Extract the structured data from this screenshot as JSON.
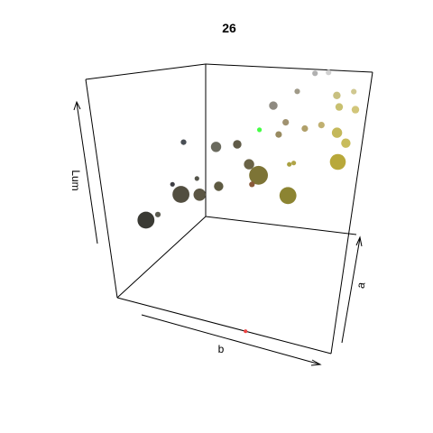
{
  "chart_data": {
    "type": "scatter3d",
    "title": "26",
    "xlabel": "b",
    "ylabel": "a",
    "zlabel": "Lum",
    "grid": false,
    "legend": "none",
    "points": [
      {
        "x": 0.02,
        "y": 0.34,
        "z": 0.26,
        "size": 1.8,
        "color": "#3a3a34"
      },
      {
        "x": 0.14,
        "y": 0.22,
        "z": 0.36,
        "size": 0.6,
        "color": "#5b5b50"
      },
      {
        "x": 0.1,
        "y": 0.56,
        "z": 0.34,
        "size": 1.8,
        "color": "#524e40"
      },
      {
        "x": 0.2,
        "y": 0.56,
        "z": 0.36,
        "size": 1.3,
        "color": "#5b5644"
      },
      {
        "x": 0.24,
        "y": 0.7,
        "z": 0.36,
        "size": 1.0,
        "color": "#5e5a42"
      },
      {
        "x": 0.3,
        "y": 0.8,
        "z": 0.58,
        "size": 0.9,
        "color": "#605b48"
      },
      {
        "x": 0.36,
        "y": 0.82,
        "z": 0.46,
        "size": 1.1,
        "color": "#6a6346"
      },
      {
        "x": 0.4,
        "y": 0.86,
        "z": 0.38,
        "size": 2.0,
        "color": "#7d7436"
      },
      {
        "x": 0.37,
        "y": 0.84,
        "z": 0.33,
        "size": 0.6,
        "color": "#8a5a3a"
      },
      {
        "x": 0.58,
        "y": 0.86,
        "z": 0.28,
        "size": 1.8,
        "color": "#8c8432"
      },
      {
        "x": 0.55,
        "y": 0.95,
        "z": 0.42,
        "size": 0.5,
        "color": "#a9a040"
      },
      {
        "x": 0.57,
        "y": 0.97,
        "z": 0.42,
        "size": 0.5,
        "color": "#b0a448"
      },
      {
        "x": 0.84,
        "y": 0.99,
        "z": 0.44,
        "size": 1.7,
        "color": "#b8a83a"
      },
      {
        "x": 0.82,
        "y": 0.99,
        "z": 0.62,
        "size": 1.1,
        "color": "#c4b85a"
      },
      {
        "x": 0.88,
        "y": 0.99,
        "z": 0.56,
        "size": 1.0,
        "color": "#c8bc5c"
      },
      {
        "x": 0.46,
        "y": 0.99,
        "z": 0.58,
        "size": 0.7,
        "color": "#988a60"
      },
      {
        "x": 0.5,
        "y": 0.99,
        "z": 0.66,
        "size": 0.7,
        "color": "#a09270"
      },
      {
        "x": 0.62,
        "y": 0.99,
        "z": 0.63,
        "size": 0.7,
        "color": "#b0a06a"
      },
      {
        "x": 0.42,
        "y": 0.99,
        "z": 0.76,
        "size": 0.9,
        "color": "#8e8a80"
      },
      {
        "x": 0.56,
        "y": 0.99,
        "z": 0.86,
        "size": 0.6,
        "color": "#a09a88"
      },
      {
        "x": 0.72,
        "y": 0.99,
        "z": 0.66,
        "size": 0.7,
        "color": "#c0b070"
      },
      {
        "x": 0.8,
        "y": 0.99,
        "z": 0.85,
        "size": 0.8,
        "color": "#c8c080"
      },
      {
        "x": 0.82,
        "y": 0.99,
        "z": 0.78,
        "size": 0.8,
        "color": "#c8c070"
      },
      {
        "x": 0.9,
        "y": 0.99,
        "z": 0.88,
        "size": 0.6,
        "color": "#d0c890"
      },
      {
        "x": 0.92,
        "y": 0.99,
        "z": 0.77,
        "size": 0.8,
        "color": "#d2c67a"
      },
      {
        "x": 0.66,
        "y": 0.99,
        "z": 0.98,
        "size": 0.6,
        "color": "#b0b0b0"
      },
      {
        "x": 0.74,
        "y": 0.99,
        "z": 0.99,
        "size": 0.6,
        "color": "#d0d0d0"
      },
      {
        "x": 0.22,
        "y": 0.72,
        "z": 0.58,
        "size": 1.1,
        "color": "#6a6a5e"
      },
      {
        "x": 0.34,
        "y": 0.99,
        "z": 0.6,
        "size": 0.5,
        "color": "#44ff44"
      },
      {
        "x": 0.16,
        "y": 0.5,
        "z": 0.66,
        "size": 0.6,
        "color": "#4a4f55"
      },
      {
        "x": 0.12,
        "y": 0.44,
        "z": 0.44,
        "size": 0.5,
        "color": "#3f3f45"
      },
      {
        "x": 0.16,
        "y": 0.62,
        "z": 0.42,
        "size": 0.5,
        "color": "#55554a"
      },
      {
        "x": 0.6,
        "y": 0.0,
        "z": 0.0,
        "size": 0.4,
        "color": "#ee4444"
      }
    ]
  }
}
